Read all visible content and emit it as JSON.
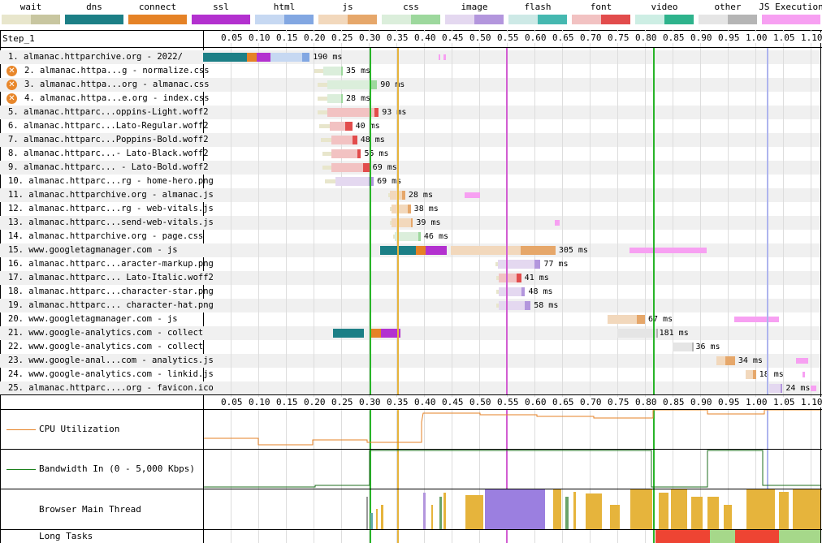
{
  "legend": [
    {
      "label": "wait",
      "colors": [
        "#e8e6cc",
        "#c8c6a0"
      ]
    },
    {
      "label": "dns",
      "colors": [
        "#1c7f86",
        "#1c7f86"
      ]
    },
    {
      "label": "connect",
      "colors": [
        "#e58226",
        "#e58226"
      ]
    },
    {
      "label": "ssl",
      "colors": [
        "#b331cf",
        "#b331cf"
      ]
    },
    {
      "label": "html",
      "colors": [
        "#c6d8f2",
        "#82a7e2"
      ]
    },
    {
      "label": "js",
      "colors": [
        "#f2d8bc",
        "#e6a76a"
      ]
    },
    {
      "label": "css",
      "colors": [
        "#dbeedb",
        "#9dd89d"
      ]
    },
    {
      "label": "image",
      "colors": [
        "#e4d8f0",
        "#b396dd"
      ]
    },
    {
      "label": "flash",
      "colors": [
        "#cde9e6",
        "#45b8b0"
      ]
    },
    {
      "label": "font",
      "colors": [
        "#f2c2c2",
        "#e24c4c"
      ]
    },
    {
      "label": "video",
      "colors": [
        "#cdeee4",
        "#2eb38c"
      ]
    },
    {
      "label": "other",
      "colors": [
        "#e5e5e5",
        "#b5b5b5"
      ]
    },
    {
      "label": "JS Execution",
      "colors": [
        "#f7a0f2",
        "#f7a0f2"
      ]
    }
  ],
  "step_label": "Step_1",
  "ticks": [
    "0.05",
    "0.10",
    "0.15",
    "0.20",
    "0.25",
    "0.30",
    "0.35",
    "0.40",
    "0.45",
    "0.50",
    "0.55",
    "0.60",
    "0.65",
    "0.70",
    "0.75",
    "0.80",
    "0.85",
    "0.90",
    "0.95",
    "1.00",
    "1.05",
    "1.10"
  ],
  "requests": [
    {
      "label": "1. almanac.httparchive.org - 2022/",
      "time": "190 ms",
      "type": "html",
      "err": false
    },
    {
      "label": "2. almanac.httpa...g - normalize.css",
      "time": "35 ms",
      "type": "css",
      "err": true
    },
    {
      "label": "3. almanac.httpa...org - almanac.css",
      "time": "90 ms",
      "type": "css",
      "err": true
    },
    {
      "label": "4. almanac.httpa...e.org - index.css",
      "time": "28 ms",
      "type": "css",
      "err": true
    },
    {
      "label": "5. almanac.httparc...oppins-Light.woff2",
      "time": "93 ms",
      "type": "font",
      "err": false
    },
    {
      "label": "6. almanac.httparc...Lato-Regular.woff2",
      "time": "40 ms",
      "type": "font",
      "err": false
    },
    {
      "label": "7. almanac.httparc...Poppins-Bold.woff2",
      "time": "48 ms",
      "type": "font",
      "err": false
    },
    {
      "label": "8. almanac.httparc...- Lato-Black.woff2",
      "time": "55 ms",
      "type": "font",
      "err": false
    },
    {
      "label": "9. almanac.httparc... - Lato-Bold.woff2",
      "time": "69 ms",
      "type": "font",
      "err": false
    },
    {
      "label": "10. almanac.httparc...rg - home-hero.png",
      "time": "69 ms",
      "type": "image",
      "err": false
    },
    {
      "label": "11. almanac.httparchive.org - almanac.js",
      "time": "28 ms",
      "type": "js",
      "err": false
    },
    {
      "label": "12. almanac.httparc...rg - web-vitals.js",
      "time": "38 ms",
      "type": "js",
      "err": false
    },
    {
      "label": "13. almanac.httparc...send-web-vitals.js",
      "time": "39 ms",
      "type": "js",
      "err": false
    },
    {
      "label": "14. almanac.httparchive.org - page.css",
      "time": "46 ms",
      "type": "css",
      "err": false
    },
    {
      "label": "15. www.googletagmanager.com - js",
      "time": "305 ms",
      "type": "js",
      "err": false
    },
    {
      "label": "16. almanac.httparc...aracter-markup.png",
      "time": "77 ms",
      "type": "image",
      "err": false
    },
    {
      "label": "17. almanac.httparc... Lato-Italic.woff2",
      "time": "41 ms",
      "type": "font",
      "err": false
    },
    {
      "label": "18. almanac.httparc...character-star.png",
      "time": "48 ms",
      "type": "image",
      "err": false
    },
    {
      "label": "19. almanac.httparc... character-hat.png",
      "time": "58 ms",
      "type": "image",
      "err": false
    },
    {
      "label": "20. www.googletagmanager.com - js",
      "time": "67 ms",
      "type": "js",
      "err": false
    },
    {
      "label": "21. www.google-analytics.com - collect",
      "time": "181 ms",
      "type": "other",
      "err": false
    },
    {
      "label": "22. www.google-analytics.com - collect",
      "time": "36 ms",
      "type": "other",
      "err": false
    },
    {
      "label": "23. www.google-anal...com - analytics.js",
      "time": "34 ms",
      "type": "js",
      "err": false
    },
    {
      "label": "24. www.google-analytics.com - linkid.js",
      "time": "18 ms",
      "type": "js",
      "err": false
    },
    {
      "label": "25. almanac.httparc....org - favicon.ico",
      "time": "24 ms",
      "type": "image",
      "err": false
    }
  ],
  "cpu_label": "CPU Utilization",
  "bandwidth_label": "Bandwidth In (0 - 5,000 Kbps)",
  "main_thread_label": "Browser Main Thread",
  "long_tasks_label": "Long Tasks"
}
